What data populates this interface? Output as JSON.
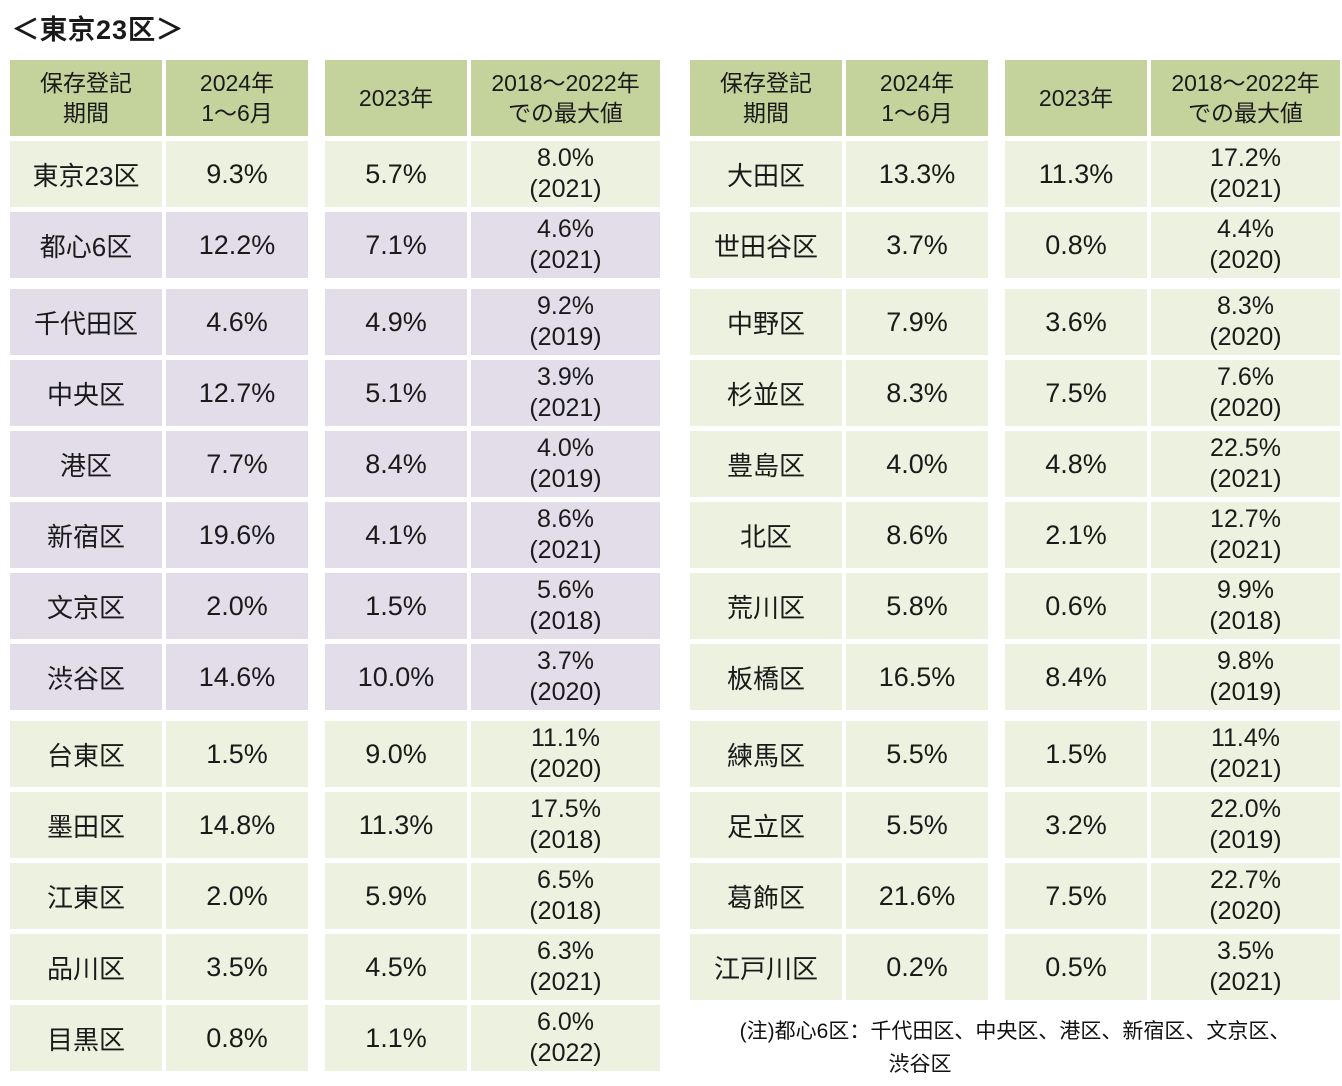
{
  "title": "＜東京23区＞",
  "colors": {
    "header_green": "#c4d29c",
    "row_green": "#edf1e0",
    "row_purple": "#e2dde9",
    "text": "#1a1a1a",
    "background": "#ffffff"
  },
  "headers": [
    {
      "l1": "保存登記",
      "l2": "期間"
    },
    {
      "l1": "2024年",
      "l2": "1～6月"
    },
    {
      "l1": "2023年",
      "l2": ""
    },
    {
      "l1": "2018～2022年",
      "l2": "での最大値"
    }
  ],
  "note": {
    "l1": "(注)都心6区：千代田区、中央区、港区、新宿区、文京区、",
    "l2": "渋谷区"
  },
  "chart_data": [
    {
      "type": "table",
      "title": "＜東京23区＞ 左表",
      "columns": [
        "保存登記期間",
        "2024年1～6月",
        "2023年",
        "2018～2022年での最大値"
      ],
      "rows": [
        [
          "東京23区",
          "9.3%",
          "5.7%",
          "8.0%",
          "(2021)"
        ],
        [
          "都心6区",
          "12.2%",
          "7.1%",
          "4.6%",
          "(2021)"
        ],
        [
          "千代田区",
          "4.6%",
          "4.9%",
          "9.2%",
          "(2019)"
        ],
        [
          "中央区",
          "12.7%",
          "5.1%",
          "3.9%",
          "(2021)"
        ],
        [
          "港区",
          "7.7%",
          "8.4%",
          "4.0%",
          "(2019)"
        ],
        [
          "新宿区",
          "19.6%",
          "4.1%",
          "8.6%",
          "(2021)"
        ],
        [
          "文京区",
          "2.0%",
          "1.5%",
          "5.6%",
          "(2018)"
        ],
        [
          "渋谷区",
          "14.6%",
          "10.0%",
          "3.7%",
          "(2020)"
        ],
        [
          "台東区",
          "1.5%",
          "9.0%",
          "11.1%",
          "(2020)"
        ],
        [
          "墨田区",
          "14.8%",
          "11.3%",
          "17.5%",
          "(2018)"
        ],
        [
          "江東区",
          "2.0%",
          "5.9%",
          "6.5%",
          "(2018)"
        ],
        [
          "品川区",
          "3.5%",
          "4.5%",
          "6.3%",
          "(2021)"
        ],
        [
          "目黒区",
          "0.8%",
          "1.1%",
          "6.0%",
          "(2022)"
        ]
      ],
      "row_colors": [
        "green",
        "purple",
        "purple",
        "purple",
        "purple",
        "purple",
        "purple",
        "purple",
        "green",
        "green",
        "green",
        "green",
        "green"
      ]
    },
    {
      "type": "table",
      "title": "＜東京23区＞ 右表",
      "columns": [
        "保存登記期間",
        "2024年1～6月",
        "2023年",
        "2018～2022年での最大値"
      ],
      "rows": [
        [
          "大田区",
          "13.3%",
          "11.3%",
          "17.2%",
          "(2021)"
        ],
        [
          "世田谷区",
          "3.7%",
          "0.8%",
          "4.4%",
          "(2020)"
        ],
        [
          "中野区",
          "7.9%",
          "3.6%",
          "8.3%",
          "(2020)"
        ],
        [
          "杉並区",
          "8.3%",
          "7.5%",
          "7.6%",
          "(2020)"
        ],
        [
          "豊島区",
          "4.0%",
          "4.8%",
          "22.5%",
          "(2021)"
        ],
        [
          "北区",
          "8.6%",
          "2.1%",
          "12.7%",
          "(2021)"
        ],
        [
          "荒川区",
          "5.8%",
          "0.6%",
          "9.9%",
          "(2018)"
        ],
        [
          "板橋区",
          "16.5%",
          "8.4%",
          "9.8%",
          "(2019)"
        ],
        [
          "練馬区",
          "5.5%",
          "1.5%",
          "11.4%",
          "(2021)"
        ],
        [
          "足立区",
          "5.5%",
          "3.2%",
          "22.0%",
          "(2019)"
        ],
        [
          "葛飾区",
          "21.6%",
          "7.5%",
          "22.7%",
          "(2020)"
        ],
        [
          "江戸川区",
          "0.2%",
          "0.5%",
          "3.5%",
          "(2021)"
        ]
      ],
      "row_colors": [
        "green",
        "green",
        "green",
        "green",
        "green",
        "green",
        "green",
        "green",
        "green",
        "green",
        "green",
        "green"
      ]
    }
  ]
}
